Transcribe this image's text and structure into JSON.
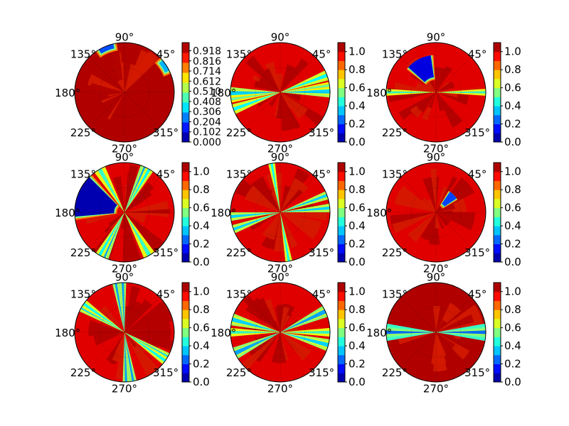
{
  "chart_data": [
    {
      "type": "heatmap",
      "projection": "polar",
      "angle_tick_labels": [
        "90°",
        "135°",
        "180°",
        "225°",
        "270°",
        "315°",
        "45°"
      ],
      "colorbar": {
        "ticks": [
          "0.000",
          "0.102",
          "0.204",
          "0.306",
          "0.408",
          "0.510",
          "0.612",
          "0.714",
          "0.816",
          "0.918"
        ],
        "range": [
          0.0,
          1.0
        ]
      },
      "colormap": "jet",
      "panel": "top-left",
      "features": [
        {
          "kind": "background",
          "value": 1.0
        },
        {
          "kind": "wedge",
          "angle_deg": 112,
          "width_deg": 18,
          "r_inner": 0.85,
          "value": 0.2
        },
        {
          "kind": "wedge",
          "angle_deg": 33,
          "width_deg": 14,
          "r_inner": 0.85,
          "value": 0.3
        }
      ]
    },
    {
      "type": "heatmap",
      "projection": "polar",
      "angle_tick_labels": [
        "90°",
        "135°",
        "180°",
        "225°",
        "270°",
        "315°",
        "45°"
      ],
      "colorbar": {
        "ticks": [
          "0.0",
          "0.2",
          "0.4",
          "0.6",
          "0.8",
          "1.0"
        ],
        "range": [
          0.0,
          1.1
        ]
      },
      "colormap": "jet",
      "panel": "top-middle",
      "features": [
        {
          "kind": "background",
          "value": 0.95
        },
        {
          "kind": "beam",
          "angle_deg": 181,
          "width_deg": 14,
          "value": 0.35
        },
        {
          "kind": "beam",
          "angle_deg": 200,
          "width_deg": 10,
          "value": 0.45
        },
        {
          "kind": "beam",
          "angle_deg": 20,
          "width_deg": 12,
          "value": 0.4
        },
        {
          "kind": "beam",
          "angle_deg": 8,
          "width_deg": 8,
          "value": 0.5
        }
      ]
    },
    {
      "type": "heatmap",
      "projection": "polar",
      "angle_tick_labels": [
        "90°",
        "135°",
        "180°",
        "225°",
        "270°",
        "315°",
        "45°"
      ],
      "colorbar": {
        "ticks": [
          "0.0",
          "0.2",
          "0.4",
          "0.6",
          "0.8",
          "1.0"
        ],
        "range": [
          0.0,
          1.1
        ]
      },
      "colormap": "jet",
      "panel": "top-right",
      "features": [
        {
          "kind": "background",
          "value": 0.95
        },
        {
          "kind": "blob",
          "angle_deg": 118,
          "width_deg": 40,
          "r_inner": 0.25,
          "r_outer": 0.75,
          "value": 0.1
        },
        {
          "kind": "beam",
          "angle_deg": 0,
          "width_deg": 8,
          "value": 0.45
        }
      ]
    },
    {
      "type": "heatmap",
      "projection": "polar",
      "angle_tick_labels": [
        "90°",
        "135°",
        "180°",
        "225°",
        "270°",
        "315°",
        "45°"
      ],
      "colorbar": {
        "ticks": [
          "0.0",
          "0.2",
          "0.4",
          "0.6",
          "0.8",
          "1.0"
        ],
        "range": [
          0.0,
          1.1
        ]
      },
      "colormap": "jet",
      "panel": "middle-left",
      "features": [
        {
          "kind": "background",
          "value": 0.95
        },
        {
          "kind": "blob",
          "angle_deg": 160,
          "width_deg": 50,
          "r_inner": 0.15,
          "r_outer": 1.0,
          "value": 0.05
        },
        {
          "kind": "beam",
          "angle_deg": 245,
          "width_deg": 12,
          "value": 0.3
        },
        {
          "kind": "beam",
          "angle_deg": 60,
          "width_deg": 10,
          "value": 0.4
        },
        {
          "kind": "beam",
          "angle_deg": 300,
          "width_deg": 14,
          "value": 0.45
        }
      ]
    },
    {
      "type": "heatmap",
      "projection": "polar",
      "angle_tick_labels": [
        "90°",
        "135°",
        "180°",
        "225°",
        "270°",
        "315°",
        "45°"
      ],
      "colorbar": {
        "ticks": [
          "0.0",
          "0.2",
          "0.4",
          "0.6",
          "0.8",
          "1.0"
        ],
        "range": [
          0.0,
          1.1
        ]
      },
      "colormap": "jet",
      "panel": "center",
      "features": [
        {
          "kind": "background",
          "value": 0.95
        },
        {
          "kind": "beam",
          "angle_deg": 100,
          "width_deg": 8,
          "value": 0.4
        },
        {
          "kind": "beam",
          "angle_deg": 200,
          "width_deg": 10,
          "value": 0.35
        },
        {
          "kind": "beam",
          "angle_deg": 5,
          "width_deg": 10,
          "value": 0.35
        }
      ]
    },
    {
      "type": "heatmap",
      "projection": "polar",
      "angle_tick_labels": [
        "90°",
        "135°",
        "180°",
        "225°",
        "270°",
        "315°",
        "45°"
      ],
      "colorbar": {
        "ticks": [
          "0.0",
          "0.2",
          "0.4",
          "0.6",
          "0.8",
          "1.0"
        ],
        "range": [
          0.0,
          1.1
        ]
      },
      "colormap": "jet",
      "panel": "middle-right",
      "features": [
        {
          "kind": "background",
          "value": 0.95
        },
        {
          "kind": "blob",
          "angle_deg": 45,
          "width_deg": 22,
          "r_inner": 0.15,
          "r_outer": 0.5,
          "value": 0.2
        }
      ]
    },
    {
      "type": "heatmap",
      "projection": "polar",
      "angle_tick_labels": [
        "90°",
        "135°",
        "180°",
        "225°",
        "270°",
        "315°",
        "45°"
      ],
      "colorbar": {
        "ticks": [
          "0.0",
          "0.2",
          "0.4",
          "0.6",
          "0.8",
          "1.0"
        ],
        "range": [
          0.0,
          1.1
        ]
      },
      "colormap": "jet",
      "panel": "bottom-left",
      "features": [
        {
          "kind": "background",
          "value": 0.95
        },
        {
          "kind": "beam",
          "angle_deg": 92,
          "width_deg": 8,
          "value": 0.3
        },
        {
          "kind": "beam",
          "angle_deg": 150,
          "width_deg": 10,
          "value": 0.35
        },
        {
          "kind": "beam",
          "angle_deg": 280,
          "width_deg": 8,
          "value": 0.3
        },
        {
          "kind": "beam",
          "angle_deg": 325,
          "width_deg": 10,
          "value": 0.4
        }
      ]
    },
    {
      "type": "heatmap",
      "projection": "polar",
      "angle_tick_labels": [
        "90°",
        "135°",
        "180°",
        "225°",
        "270°",
        "315°",
        "45°"
      ],
      "colorbar": {
        "ticks": [
          "0.0",
          "0.2",
          "0.4",
          "0.6",
          "0.8",
          "1.0"
        ],
        "range": [
          0.0,
          1.1
        ]
      },
      "colormap": "jet",
      "panel": "bottom-middle",
      "features": [
        {
          "kind": "background",
          "value": 0.95
        },
        {
          "kind": "beam",
          "angle_deg": 25,
          "width_deg": 14,
          "value": 0.3
        },
        {
          "kind": "beam",
          "angle_deg": 165,
          "width_deg": 14,
          "value": 0.35
        },
        {
          "kind": "beam",
          "angle_deg": 180,
          "width_deg": 10,
          "value": 0.45
        }
      ]
    },
    {
      "type": "heatmap",
      "projection": "polar",
      "angle_tick_labels": [
        "90°",
        "135°",
        "180°",
        "225°",
        "270°",
        "315°",
        "45°"
      ],
      "colorbar": {
        "ticks": [
          "0.0",
          "0.2",
          "0.4",
          "0.6",
          "0.8",
          "1.0"
        ],
        "range": [
          0.0,
          1.1
        ]
      },
      "colormap": "jet",
      "panel": "bottom-right",
      "features": [
        {
          "kind": "background",
          "value": 1.0
        },
        {
          "kind": "beam",
          "angle_deg": 180,
          "width_deg": 20,
          "value": 0.15
        },
        {
          "kind": "beam",
          "angle_deg": 0,
          "width_deg": 12,
          "value": 0.25
        }
      ]
    }
  ]
}
